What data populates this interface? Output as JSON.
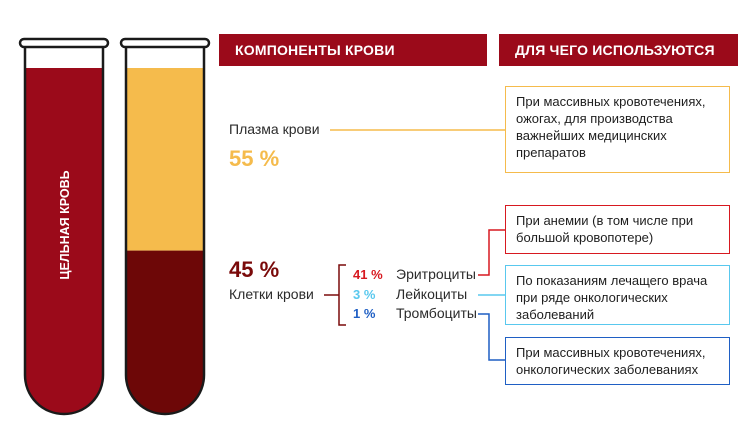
{
  "tube_left": {
    "label": "ЦЕЛЬНАЯ КРОВЬ"
  },
  "headers": {
    "components": "КОМПОНЕНТЫ КРОВИ",
    "usage": "ДЛЯ ЧЕГО ИСПОЛЬЗУЮТСЯ"
  },
  "plasma": {
    "label": "Плазма крови",
    "percent": "55 %",
    "fraction": 0.55
  },
  "cells": {
    "percent": "45 %",
    "label": "Клетки крови",
    "fraction": 0.45,
    "items": [
      {
        "percent": "41 %",
        "name": "Эритроциты"
      },
      {
        "percent": "3 %",
        "name": "Лейкоциты"
      },
      {
        "percent": "1 %",
        "name": "Тромбоциты"
      }
    ]
  },
  "uses": {
    "plasma": "При массивных кровотечениях, ожогах, для производства важнейших медицинских препаратов",
    "erythrocytes": "При анемии (в том числе при большой кровопотере)",
    "leukocytes": "По показаниям лечащего врача при ряде онкологических заболеваний",
    "platelets": "При массивных кровотечениях, онкологических заболеваниях"
  },
  "colors": {
    "header": "#9b0a1a",
    "whole_blood": "#9b0a1a",
    "plasma": "#f5bb4c",
    "cells": "#6d0707",
    "plasma_text": "#f5bb4c",
    "cells_text": "#7a0a0a",
    "erythrocytes": "#d71920",
    "leukocytes": "#59c8ee",
    "platelets": "#1f5fc4"
  }
}
